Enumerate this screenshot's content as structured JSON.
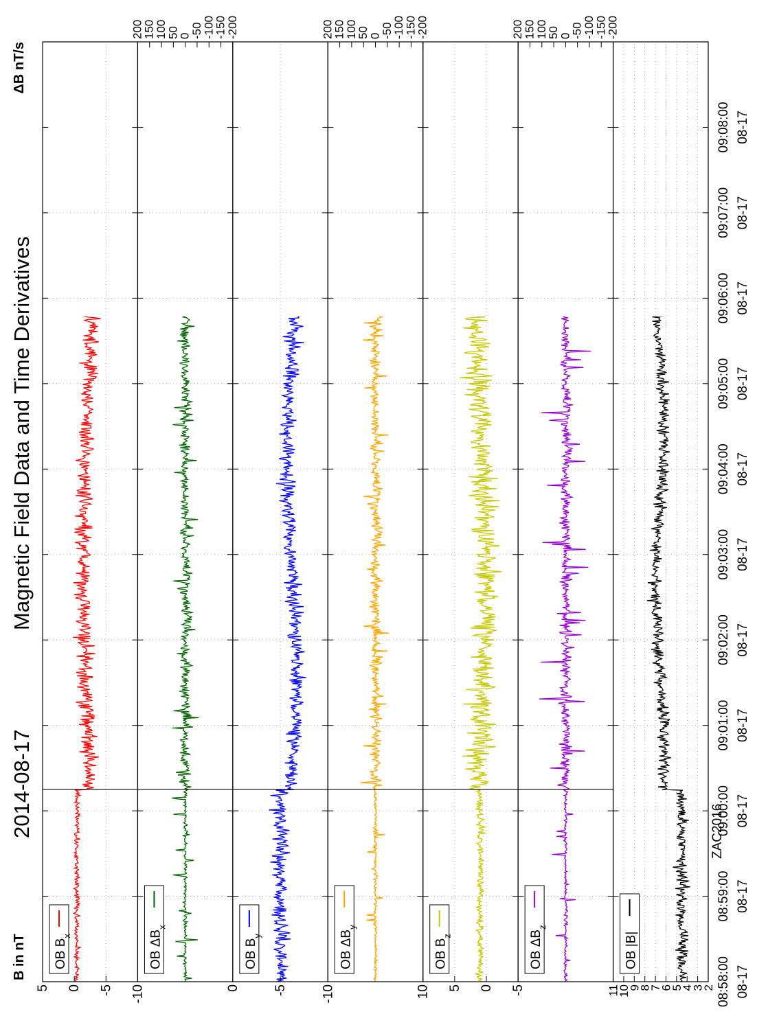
{
  "chart_data": {
    "type": "line",
    "title": "Magnetic Field Data and Time Derivatives",
    "date": "2014-08-17",
    "left_axis_label": "B in nT",
    "right_axis_label": "ΔB nT/s",
    "watermark": "ZAC2016",
    "time_ticks": [
      {
        "time": "08:58:00",
        "date": "08-17"
      },
      {
        "time": "08:59:00",
        "date": "08-17"
      },
      {
        "time": "09:00:00",
        "date": "08-17"
      },
      {
        "time": "09:01:00",
        "date": "08-17"
      },
      {
        "time": "09:02:00",
        "date": "08-17"
      },
      {
        "time": "09:03:00",
        "date": "08-17"
      },
      {
        "time": "09:04:00",
        "date": "08-17"
      },
      {
        "time": "09:05:00",
        "date": "08-17"
      },
      {
        "time": "09:06:00",
        "date": "08-17"
      },
      {
        "time": "09:07:00",
        "date": "08-17"
      },
      {
        "time": "09:08:00",
        "date": "08-17"
      }
    ],
    "xlim_minutes": [
      0,
      11
    ],
    "event_marker_minutes": 2.25,
    "panels": [
      {
        "id": "bx",
        "legend": "OB B",
        "sub": "x",
        "delta": false,
        "color": "#ff0000",
        "axis": "left",
        "ylim": [
          -10,
          5
        ],
        "ticks": [
          "5",
          "0",
          "-5",
          "-10"
        ],
        "tick_values": [
          5,
          0,
          -5,
          -10
        ],
        "grid_values": [
          -5
        ]
      },
      {
        "id": "dbx",
        "legend": "OB ΔB",
        "sub": "x",
        "delta": true,
        "color": "#006400",
        "axis": "right",
        "ylim": [
          -200,
          200
        ],
        "ticks": [
          "200",
          "150",
          "100",
          "50",
          "0",
          "-50",
          "-100",
          "-150",
          "-200"
        ],
        "tick_values": [
          200,
          150,
          100,
          50,
          0,
          -50,
          -100,
          -150,
          -200
        ],
        "grid_values": []
      },
      {
        "id": "by",
        "legend": "OB B",
        "sub": "y",
        "delta": false,
        "color": "#0000ff",
        "axis": "left",
        "ylim": [
          -10,
          0
        ],
        "ticks": [
          "0",
          "-5",
          "-10"
        ],
        "tick_values": [
          0,
          -5,
          -10
        ],
        "grid_values": [
          -5
        ]
      },
      {
        "id": "dby",
        "legend": "OB ΔB",
        "sub": "y",
        "delta": true,
        "color": "#ffa500",
        "axis": "right",
        "ylim": [
          -200,
          200
        ],
        "ticks": [
          "200",
          "150",
          "100",
          "50",
          "0",
          "-50",
          "-100",
          "-150",
          "-200"
        ],
        "tick_values": [
          200,
          150,
          100,
          50,
          0,
          -50,
          -100,
          -150,
          -200
        ],
        "grid_values": []
      },
      {
        "id": "bz",
        "legend": "OB B",
        "sub": "z",
        "delta": false,
        "color": "#c8c800",
        "axis": "left",
        "ylim": [
          -5,
          10
        ],
        "ticks": [
          "10",
          "5",
          "0",
          "-5"
        ],
        "tick_values": [
          10,
          5,
          0,
          -5
        ],
        "grid_values": [
          5,
          0
        ]
      },
      {
        "id": "dbz",
        "legend": "OB ΔB",
        "sub": "z",
        "delta": true,
        "color": "#9400d3",
        "axis": "right",
        "ylim": [
          -200,
          200
        ],
        "ticks": [
          "200",
          "150",
          "100",
          "50",
          "0",
          "-50",
          "-100",
          "-150",
          "-200"
        ],
        "tick_values": [
          200,
          150,
          100,
          50,
          0,
          -50,
          -100,
          -150,
          -200
        ],
        "grid_values": []
      },
      {
        "id": "bt",
        "legend": "OB |B|",
        "sub": "",
        "delta": false,
        "color": "#000000",
        "axis": "left",
        "ylim": [
          2,
          11
        ],
        "ticks": [
          "11",
          "10",
          "9",
          "8",
          "7",
          "6",
          "5",
          "4",
          "3",
          "2"
        ],
        "tick_values": [
          11,
          10,
          9,
          8,
          7,
          6,
          5,
          4,
          3,
          2
        ],
        "grid_values": [
          3,
          4,
          5,
          6,
          7,
          8,
          9,
          10
        ]
      }
    ]
  }
}
